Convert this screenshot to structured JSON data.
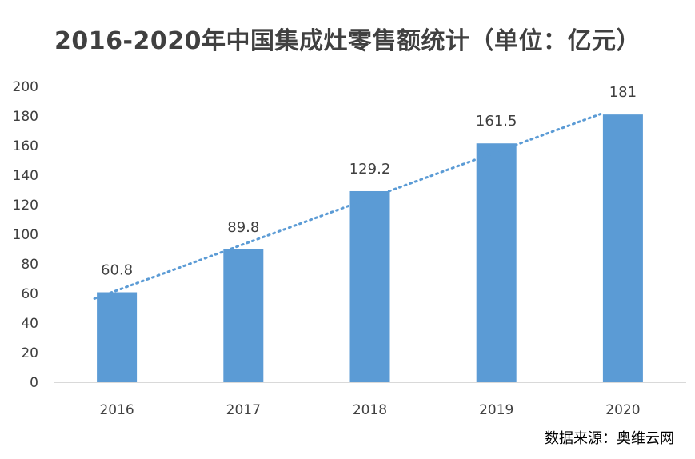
{
  "chart_data": {
    "type": "bar",
    "title": "2016-2020年中国集成灶零售额统计（单位：亿元）",
    "categories": [
      "2016",
      "2017",
      "2018",
      "2019",
      "2020"
    ],
    "values": [
      60.8,
      89.8,
      129.2,
      161.5,
      181
    ],
    "data_labels": [
      "60.8",
      "89.8",
      "129.2",
      "161.5",
      "181"
    ],
    "ylim": [
      0,
      200
    ],
    "yticks": [
      0,
      20,
      40,
      60,
      80,
      100,
      120,
      140,
      160,
      180,
      200
    ],
    "grid": false,
    "trendline": "linear (dotted)",
    "bar_color": "#5B9BD5",
    "trendline_color": "#5B9BD5"
  },
  "source_note": "数据来源：奥维云网"
}
